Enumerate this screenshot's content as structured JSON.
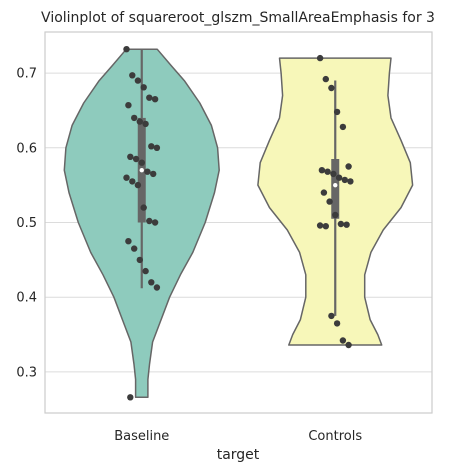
{
  "chart_data": {
    "type": "violin",
    "title": "Violinplot of squareroot_glszm_SmallAreaEmphasis for 3",
    "xlabel": "target",
    "ylabel": "",
    "categories": [
      "Baseline",
      "Controls"
    ],
    "ylim": [
      0.245,
      0.755
    ],
    "yticks": [
      0.3,
      0.4,
      0.5,
      0.6,
      0.7
    ],
    "ytick_labels": [
      "0.3",
      "0.4",
      "0.5",
      "0.6",
      "0.7"
    ],
    "grid": "horizontal",
    "series": [
      {
        "category": "Baseline",
        "color": "#8ecbbd",
        "min": 0.266,
        "max": 0.732,
        "q1": 0.5,
        "median": 0.57,
        "q3": 0.64,
        "whisker_low": 0.412,
        "whisker_high": 0.732,
        "density_profile": [
          [
            0.266,
            0.08
          ],
          [
            0.29,
            0.08
          ],
          [
            0.31,
            0.1
          ],
          [
            0.34,
            0.14
          ],
          [
            0.37,
            0.25
          ],
          [
            0.4,
            0.36
          ],
          [
            0.43,
            0.5
          ],
          [
            0.46,
            0.66
          ],
          [
            0.5,
            0.82
          ],
          [
            0.54,
            0.94
          ],
          [
            0.57,
            1.0
          ],
          [
            0.6,
            0.98
          ],
          [
            0.63,
            0.9
          ],
          [
            0.66,
            0.75
          ],
          [
            0.69,
            0.55
          ],
          [
            0.71,
            0.38
          ],
          [
            0.732,
            0.2
          ]
        ],
        "points": [
          0.732,
          0.697,
          0.69,
          0.681,
          0.667,
          0.665,
          0.657,
          0.64,
          0.635,
          0.632,
          0.602,
          0.6,
          0.588,
          0.585,
          0.58,
          0.568,
          0.565,
          0.56,
          0.555,
          0.55,
          0.52,
          0.502,
          0.5,
          0.475,
          0.465,
          0.45,
          0.435,
          0.42,
          0.413,
          0.266
        ]
      },
      {
        "category": "Controls",
        "color": "#f7f7b9",
        "min": 0.336,
        "max": 0.72,
        "q1": 0.505,
        "median": 0.55,
        "q3": 0.585,
        "whisker_low": 0.375,
        "whisker_high": 0.69,
        "density_profile": [
          [
            0.336,
            0.6
          ],
          [
            0.35,
            0.55
          ],
          [
            0.37,
            0.45
          ],
          [
            0.4,
            0.38
          ],
          [
            0.43,
            0.38
          ],
          [
            0.46,
            0.46
          ],
          [
            0.49,
            0.62
          ],
          [
            0.52,
            0.85
          ],
          [
            0.55,
            1.0
          ],
          [
            0.58,
            0.97
          ],
          [
            0.61,
            0.85
          ],
          [
            0.64,
            0.72
          ],
          [
            0.67,
            0.68
          ],
          [
            0.7,
            0.7
          ],
          [
            0.72,
            0.72
          ]
        ],
        "points": [
          0.72,
          0.692,
          0.68,
          0.648,
          0.628,
          0.575,
          0.57,
          0.568,
          0.565,
          0.56,
          0.557,
          0.555,
          0.54,
          0.528,
          0.51,
          0.498,
          0.497,
          0.496,
          0.495,
          0.375,
          0.365,
          0.342,
          0.336
        ]
      }
    ]
  }
}
